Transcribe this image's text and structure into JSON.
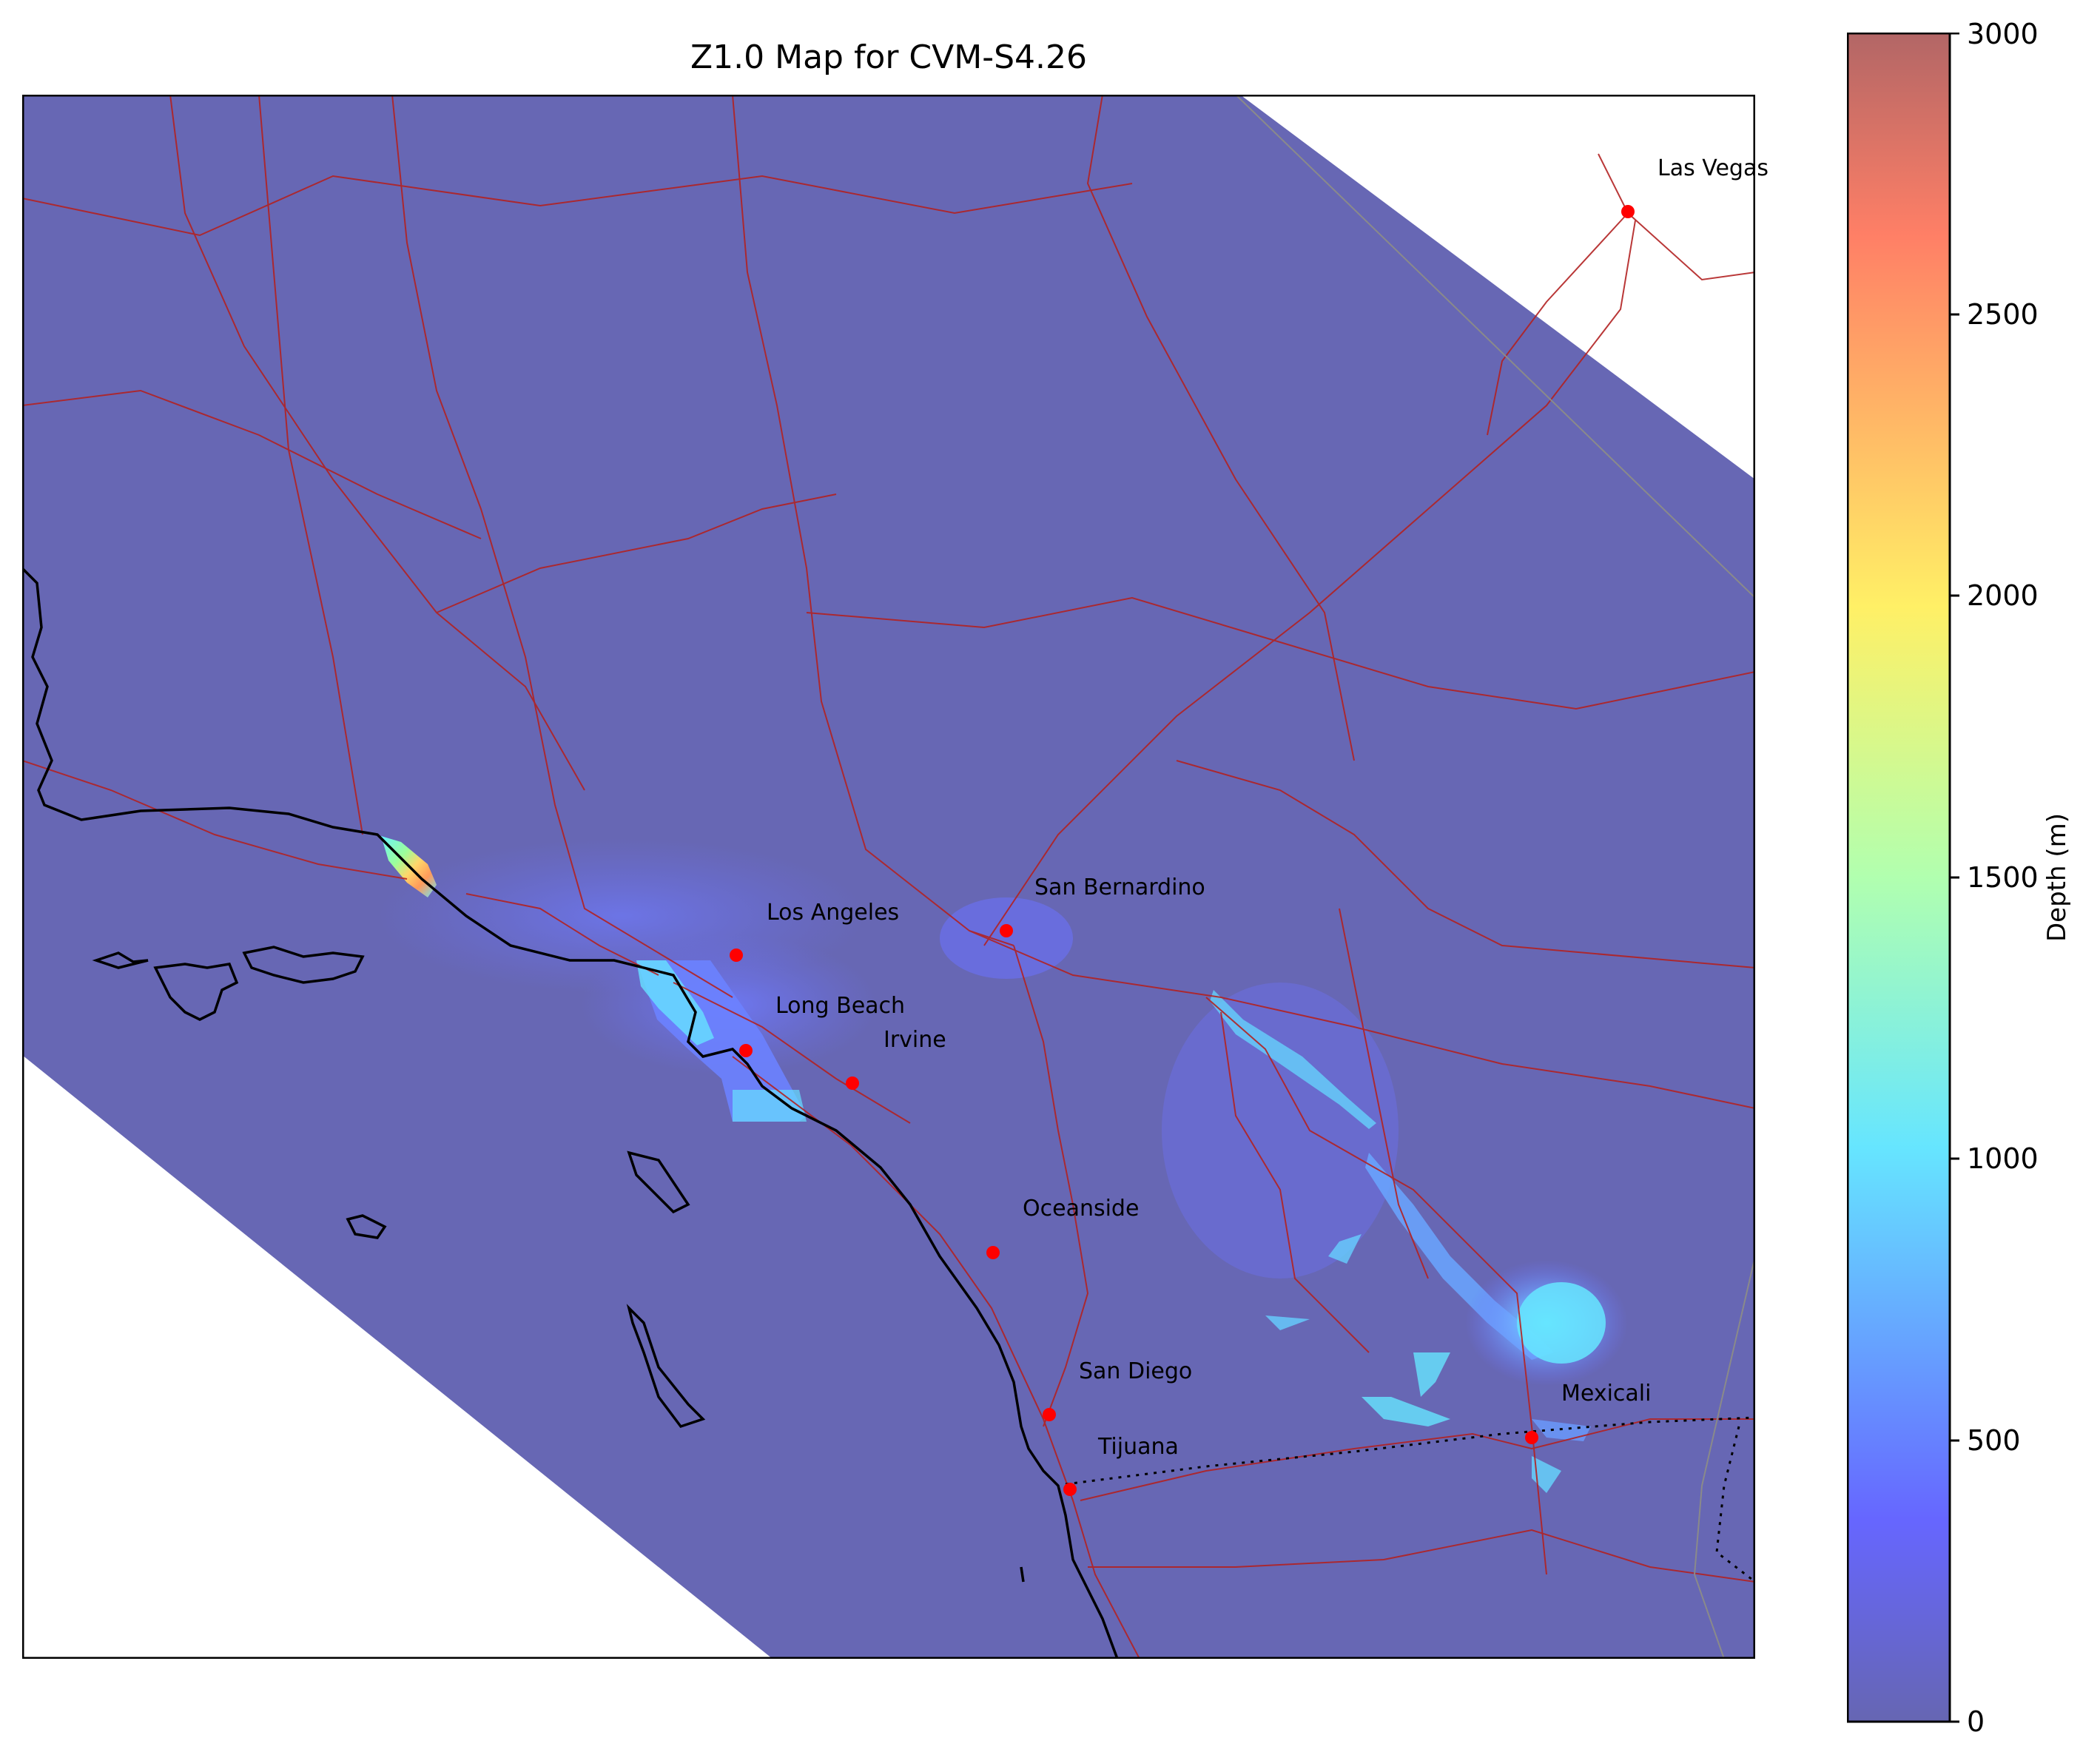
{
  "title": "Z1.0 Map for CVM-S4.26",
  "colorbar": {
    "label": "Depth (m)",
    "ticks": [
      "0",
      "500",
      "1000",
      "1500",
      "2000",
      "2500",
      "3000"
    ],
    "min": 0,
    "max": 3000,
    "colormap": "jet",
    "alpha": 0.6
  },
  "colors": {
    "background_depth": "#6767b4",
    "roads": "#b22222",
    "coastline": "#000000",
    "city_marker": "#ff0000",
    "border": "#000000"
  },
  "cities": [
    {
      "name": "Las Vegas"
    },
    {
      "name": "San Bernardino"
    },
    {
      "name": "Los Angeles"
    },
    {
      "name": "Long Beach"
    },
    {
      "name": "Irvine"
    },
    {
      "name": "Oceanside"
    },
    {
      "name": "San Diego"
    },
    {
      "name": "Tijuana"
    },
    {
      "name": "Mexicali"
    }
  ]
}
